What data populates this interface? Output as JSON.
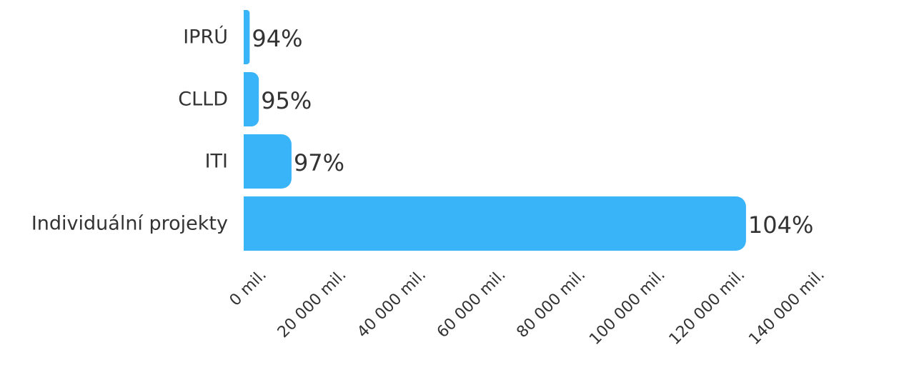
{
  "chart_data": {
    "type": "bar",
    "orientation": "horizontal",
    "categories": [
      "IPRÚ",
      "CLLD",
      "ITI",
      "Individuální projekty"
    ],
    "values": [
      1500,
      3800,
      12000,
      126000
    ],
    "value_labels": [
      "94%",
      "95%",
      "97%",
      "104%"
    ],
    "title": "",
    "xlabel": "",
    "ylabel": "",
    "xlim": [
      0,
      140000
    ],
    "x_ticks": [
      0,
      20000,
      40000,
      60000,
      80000,
      100000,
      120000,
      140000
    ],
    "x_tick_labels": [
      "0 mil.",
      "20 000 mil.",
      "40 000 mil.",
      "60 000 mil.",
      "80 000 mil.",
      "100 000 mil.",
      "120 000 mil.",
      "140 000 mil."
    ],
    "grid": false,
    "legend": "none",
    "bar_color": "#39B4F8"
  }
}
